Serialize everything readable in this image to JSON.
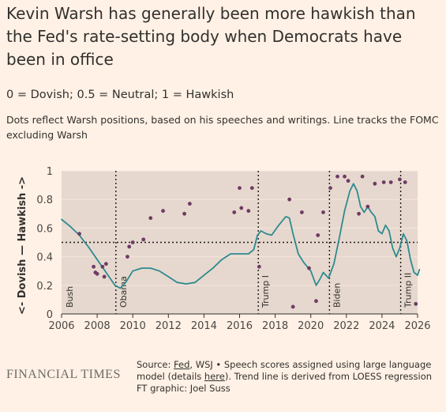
{
  "title": "Kevin Warsh has generally been more hawkish than the Fed's rate-setting body when Democrats have been in office",
  "subtitle": "0 = Dovish; 0.5 = Neutral; 1 = Hawkish",
  "description": "Dots reflect Warsh positions, based on his speeches and writings. Line tracks the FOMC excluding Warsh",
  "brand": "FINANCIAL TIMES",
  "source": {
    "prefix": "Source: ",
    "fed_link": "Fed",
    "middle": ", WSJ • Speech scores assigned using large language model (details ",
    "here_link": "here",
    "suffix": "). Trend line is derived from LOESS regression",
    "credit": "FT graphic: Joel Suss"
  },
  "colors": {
    "background": "#FFF1E5",
    "plot_background": "#E6D8CE",
    "line": "#2E8A91",
    "dots": "#6E3B63",
    "reference": "#1A1A1A"
  },
  "chart_data": {
    "type": "scatter",
    "xlim": [
      2006,
      2026
    ],
    "ylim": [
      0,
      1
    ],
    "ylabel": "<- Dovish — Hawkish ->",
    "x_ticks": [
      "2006",
      "2008",
      "2010",
      "2012",
      "2014",
      "2016",
      "2018",
      "2020",
      "2022",
      "2024",
      "2026"
    ],
    "y_ticks": [
      "0",
      "0.2",
      "0.4",
      "0.6",
      "0.8",
      "1"
    ],
    "neutral_line": 0.5,
    "eras": [
      {
        "label": "Bush",
        "start": 2006
      },
      {
        "label": "Obama",
        "start": 2009.05
      },
      {
        "label": "Trump I",
        "start": 2017.05
      },
      {
        "label": "Biden",
        "start": 2021.05
      },
      {
        "label": "Trump II",
        "start": 2025.05
      }
    ],
    "series": [
      {
        "kind": "points",
        "points": [
          [
            2007.0,
            0.56
          ],
          [
            2007.8,
            0.33
          ],
          [
            2007.9,
            0.29
          ],
          [
            2008.0,
            0.28
          ],
          [
            2008.3,
            0.33
          ],
          [
            2008.4,
            0.26
          ],
          [
            2008.5,
            0.35
          ],
          [
            2009.7,
            0.4
          ],
          [
            2009.8,
            0.47
          ],
          [
            2010.0,
            0.5
          ],
          [
            2010.6,
            0.52
          ],
          [
            2011.0,
            0.67
          ],
          [
            2011.7,
            0.72
          ],
          [
            2012.9,
            0.7
          ],
          [
            2013.2,
            0.77
          ],
          [
            2015.7,
            0.71
          ],
          [
            2016.0,
            0.88
          ],
          [
            2016.1,
            0.74
          ],
          [
            2016.5,
            0.72
          ],
          [
            2016.7,
            0.88
          ],
          [
            2017.1,
            0.33
          ],
          [
            2018.8,
            0.8
          ],
          [
            2019.0,
            0.05
          ],
          [
            2019.5,
            0.71
          ],
          [
            2019.9,
            0.32
          ],
          [
            2020.3,
            0.09
          ],
          [
            2020.4,
            0.55
          ],
          [
            2020.7,
            0.71
          ],
          [
            2021.1,
            0.88
          ],
          [
            2021.5,
            0.96
          ],
          [
            2021.9,
            0.96
          ],
          [
            2022.1,
            0.93
          ],
          [
            2022.7,
            0.7
          ],
          [
            2022.9,
            0.96
          ],
          [
            2023.2,
            0.75
          ],
          [
            2023.6,
            0.91
          ],
          [
            2024.1,
            0.92
          ],
          [
            2024.5,
            0.92
          ],
          [
            2025.0,
            0.94
          ],
          [
            2025.3,
            0.92
          ],
          [
            2025.9,
            0.07
          ]
        ]
      },
      {
        "kind": "line",
        "points": [
          [
            2006.0,
            0.66
          ],
          [
            2006.5,
            0.61
          ],
          [
            2007.0,
            0.55
          ],
          [
            2007.5,
            0.47
          ],
          [
            2008.0,
            0.38
          ],
          [
            2008.5,
            0.29
          ],
          [
            2009.0,
            0.2
          ],
          [
            2009.3,
            0.18
          ],
          [
            2009.6,
            0.22
          ],
          [
            2010.0,
            0.3
          ],
          [
            2010.5,
            0.32
          ],
          [
            2011.0,
            0.32
          ],
          [
            2011.5,
            0.3
          ],
          [
            2012.0,
            0.26
          ],
          [
            2012.5,
            0.22
          ],
          [
            2013.0,
            0.21
          ],
          [
            2013.5,
            0.22
          ],
          [
            2014.0,
            0.27
          ],
          [
            2014.5,
            0.32
          ],
          [
            2015.0,
            0.38
          ],
          [
            2015.5,
            0.42
          ],
          [
            2016.0,
            0.42
          ],
          [
            2016.5,
            0.42
          ],
          [
            2016.8,
            0.45
          ],
          [
            2017.0,
            0.55
          ],
          [
            2017.2,
            0.58
          ],
          [
            2017.5,
            0.56
          ],
          [
            2017.8,
            0.55
          ],
          [
            2018.2,
            0.62
          ],
          [
            2018.6,
            0.68
          ],
          [
            2018.8,
            0.67
          ],
          [
            2019.0,
            0.56
          ],
          [
            2019.3,
            0.42
          ],
          [
            2019.6,
            0.36
          ],
          [
            2020.0,
            0.3
          ],
          [
            2020.3,
            0.2
          ],
          [
            2020.5,
            0.24
          ],
          [
            2020.7,
            0.29
          ],
          [
            2021.0,
            0.25
          ],
          [
            2021.3,
            0.35
          ],
          [
            2021.6,
            0.53
          ],
          [
            2021.9,
            0.72
          ],
          [
            2022.2,
            0.86
          ],
          [
            2022.4,
            0.91
          ],
          [
            2022.6,
            0.86
          ],
          [
            2022.8,
            0.75
          ],
          [
            2023.0,
            0.71
          ],
          [
            2023.2,
            0.75
          ],
          [
            2023.4,
            0.71
          ],
          [
            2023.6,
            0.68
          ],
          [
            2023.8,
            0.58
          ],
          [
            2024.0,
            0.56
          ],
          [
            2024.2,
            0.62
          ],
          [
            2024.4,
            0.58
          ],
          [
            2024.6,
            0.46
          ],
          [
            2024.8,
            0.4
          ],
          [
            2025.0,
            0.46
          ],
          [
            2025.2,
            0.56
          ],
          [
            2025.4,
            0.51
          ],
          [
            2025.6,
            0.38
          ],
          [
            2025.8,
            0.29
          ],
          [
            2026.0,
            0.27
          ],
          [
            2026.1,
            0.31
          ]
        ]
      }
    ]
  }
}
